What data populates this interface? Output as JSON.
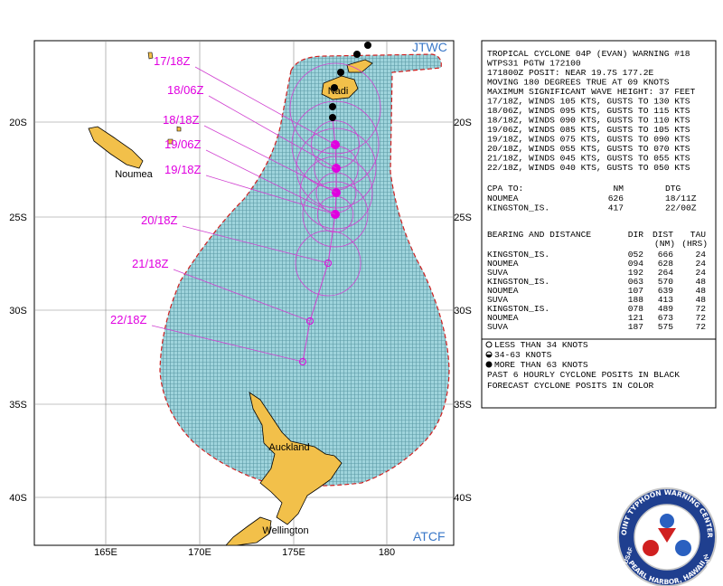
{
  "map": {
    "source_top": "JTWC",
    "source_bottom": "ATCF",
    "lon_labels": [
      "165E",
      "170E",
      "175E",
      "180"
    ],
    "lat_labels": [
      "20S",
      "25S",
      "30S",
      "35S",
      "40S"
    ],
    "places": [
      "Noumea",
      "Nadi",
      "Auckland",
      "Wellington"
    ],
    "forecast_times": [
      "17/18Z",
      "18/06Z",
      "18/18Z",
      "19/06Z",
      "19/18Z",
      "20/18Z",
      "21/18Z",
      "22/18Z"
    ]
  },
  "warning": {
    "lines": [
      "TROPICAL CYCLONE 04P (EVAN) WARNING #18",
      "WTPS31 PGTW 172100",
      "171800Z POSIT: NEAR 19.7S 177.2E",
      "MOVING 180 DEGREES TRUE AT 09 KNOTS",
      "MAXIMUM SIGNIFICANT WAVE HEIGHT: 37 FEET",
      "17/18Z, WINDS 105 KTS, GUSTS TO 130 KTS",
      "18/06Z, WINDS 095 KTS, GUSTS TO 115 KTS",
      "18/18Z, WINDS 090 KTS, GUSTS TO 110 KTS",
      "19/06Z, WINDS 085 KTS, GUSTS TO 105 KTS",
      "19/18Z, WINDS 075 KTS, GUSTS TO 090 KTS",
      "20/18Z, WINDS 055 KTS, GUSTS TO 070 KTS",
      "21/18Z, WINDS 045 KTS, GUSTS TO 055 KTS",
      "22/18Z, WINDS 040 KTS, GUSTS TO 050 KTS"
    ],
    "cpa": {
      "header": [
        "CPA TO:",
        "NM",
        "DTG"
      ],
      "rows": [
        [
          "NOUMEA",
          "626",
          "18/11Z"
        ],
        [
          "KINGSTON_IS.",
          "417",
          "22/00Z"
        ]
      ]
    },
    "bearing": {
      "header": [
        "BEARING AND DISTANCE",
        "DIR",
        "DIST",
        "TAU"
      ],
      "subheader": [
        "(NM)",
        "(HRS)"
      ],
      "rows": [
        [
          "KINGSTON_IS.",
          "052",
          "666",
          "24"
        ],
        [
          "NOUMEA",
          "094",
          "628",
          "24"
        ],
        [
          "SUVA",
          "192",
          "264",
          "24"
        ],
        [
          "KINGSTON_IS.",
          "063",
          "570",
          "48"
        ],
        [
          "NOUMEA",
          "107",
          "639",
          "48"
        ],
        [
          "SUVA",
          "188",
          "413",
          "48"
        ],
        [
          "KINGSTON_IS.",
          "078",
          "489",
          "72"
        ],
        [
          "NOUMEA",
          "121",
          "673",
          "72"
        ],
        [
          "SUVA",
          "187",
          "575",
          "72"
        ]
      ]
    }
  },
  "legend": {
    "symbols": [
      "LESS THAN 34 KNOTS",
      "34-63 KNOTS",
      "MORE THAN 63 KNOTS"
    ],
    "notes": [
      "PAST 6 HOURLY CYCLONE POSITS IN BLACK",
      "FORECAST CYCLONE POSITS IN COLOR"
    ]
  },
  "seal": {
    "top": "JOINT TYPHOON WARNING CENTER",
    "bottom": "PEARL HARBOR, HAWAII",
    "left": "USAF",
    "right": "NAVY"
  }
}
